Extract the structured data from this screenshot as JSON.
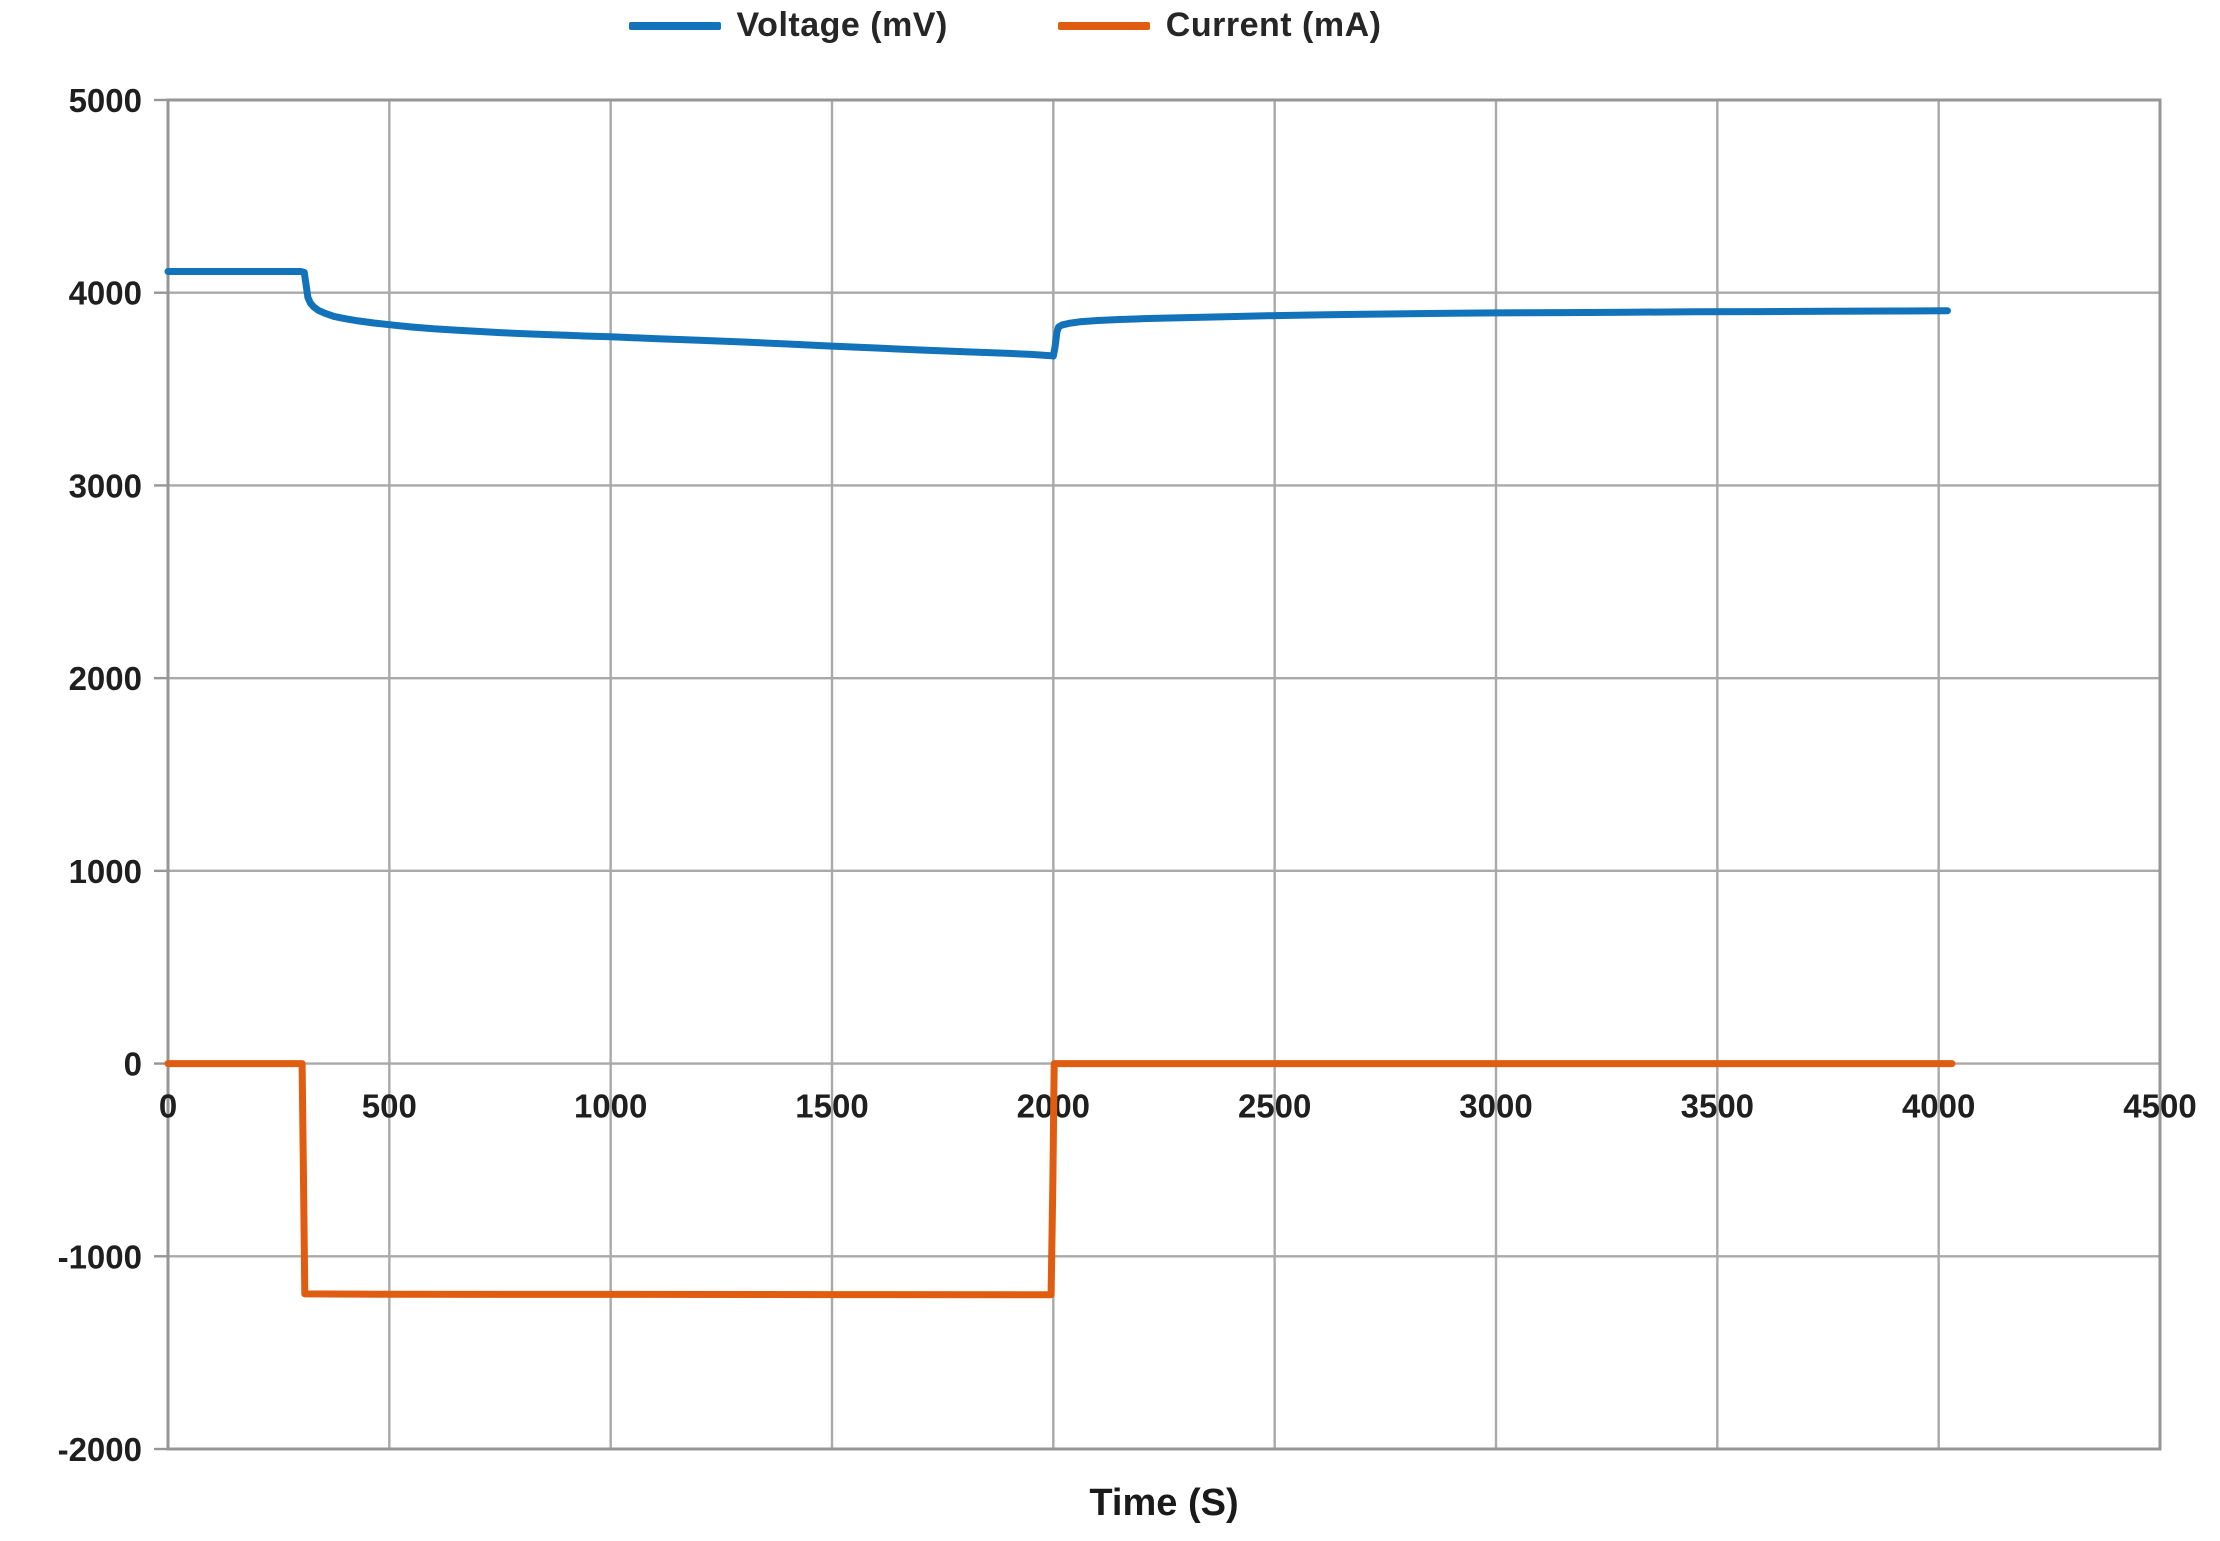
{
  "legend": {
    "items": [
      {
        "label": "Voltage (mV)",
        "color": "#1272ba"
      },
      {
        "label": "Current (mA)",
        "color": "#e05c10"
      }
    ]
  },
  "axes": {
    "xlabel": "Time (S)"
  },
  "chart_data": {
    "type": "line",
    "title": "",
    "xlabel": "Time (S)",
    "ylabel": "",
    "xlim": [
      0,
      4500
    ],
    "ylim": [
      -2000,
      5000
    ],
    "x_ticks": [
      0,
      500,
      1000,
      1500,
      2000,
      2500,
      3000,
      3500,
      4000,
      4500
    ],
    "y_ticks": [
      5000,
      4000,
      3000,
      2000,
      1000,
      0,
      -1000,
      -2000
    ],
    "grid": true,
    "legend_position": "top-center",
    "series": [
      {
        "name": "Voltage (mV)",
        "color": "#1272ba",
        "points": [
          [
            0,
            4110
          ],
          [
            100,
            4110
          ],
          [
            200,
            4110
          ],
          [
            300,
            4110
          ],
          [
            308,
            4105
          ],
          [
            312,
            4040
          ],
          [
            316,
            3975
          ],
          [
            322,
            3945
          ],
          [
            330,
            3925
          ],
          [
            340,
            3908
          ],
          [
            355,
            3893
          ],
          [
            375,
            3877
          ],
          [
            400,
            3865
          ],
          [
            430,
            3854
          ],
          [
            465,
            3843
          ],
          [
            500,
            3834
          ],
          [
            550,
            3822
          ],
          [
            600,
            3813
          ],
          [
            650,
            3806
          ],
          [
            700,
            3799
          ],
          [
            750,
            3793
          ],
          [
            800,
            3788
          ],
          [
            850,
            3783
          ],
          [
            900,
            3779
          ],
          [
            950,
            3775
          ],
          [
            1000,
            3771
          ],
          [
            1100,
            3762
          ],
          [
            1200,
            3753
          ],
          [
            1300,
            3744
          ],
          [
            1400,
            3734
          ],
          [
            1500,
            3723
          ],
          [
            1600,
            3713
          ],
          [
            1700,
            3703
          ],
          [
            1800,
            3694
          ],
          [
            1900,
            3685
          ],
          [
            1950,
            3680
          ],
          [
            1995,
            3673
          ],
          [
            2000,
            3671
          ],
          [
            2004,
            3720
          ],
          [
            2008,
            3795
          ],
          [
            2012,
            3822
          ],
          [
            2020,
            3833
          ],
          [
            2035,
            3841
          ],
          [
            2060,
            3849
          ],
          [
            2100,
            3856
          ],
          [
            2150,
            3861
          ],
          [
            2200,
            3865
          ],
          [
            2300,
            3871
          ],
          [
            2400,
            3876
          ],
          [
            2500,
            3881
          ],
          [
            2600,
            3885
          ],
          [
            2700,
            3888
          ],
          [
            2800,
            3891
          ],
          [
            2900,
            3893
          ],
          [
            3000,
            3895
          ],
          [
            3150,
            3897
          ],
          [
            3300,
            3899
          ],
          [
            3450,
            3901
          ],
          [
            3600,
            3902
          ],
          [
            3750,
            3904
          ],
          [
            3900,
            3905
          ],
          [
            4020,
            3906
          ]
        ]
      },
      {
        "name": "Current (mA)",
        "color": "#e05c10",
        "points": [
          [
            0,
            0
          ],
          [
            303,
            0
          ],
          [
            306,
            -600
          ],
          [
            309,
            -1195
          ],
          [
            500,
            -1197
          ],
          [
            1000,
            -1198
          ],
          [
            1500,
            -1199
          ],
          [
            1995,
            -1200
          ],
          [
            1999,
            -600
          ],
          [
            2002,
            0
          ],
          [
            2500,
            0
          ],
          [
            3000,
            0
          ],
          [
            3500,
            0
          ],
          [
            4030,
            0
          ]
        ]
      }
    ]
  }
}
